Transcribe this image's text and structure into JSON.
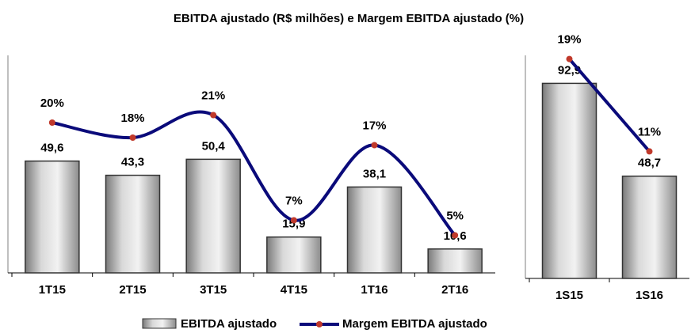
{
  "chart_data": [
    {
      "type": "bar",
      "title": "EBITDA ajustado (R$ milhões) e Margem EBITDA ajustado (%)",
      "categories": [
        "1T15",
        "2T15",
        "3T15",
        "4T15",
        "1T16",
        "2T16"
      ],
      "ylim": [
        0,
        100
      ],
      "y2lim": [
        0,
        30
      ],
      "series": [
        {
          "name": "EBITDA ajustado",
          "type": "bar",
          "color": "#a6a6a6",
          "values": [
            49.6,
            43.3,
            50.4,
            15.9,
            38.1,
            10.6
          ],
          "value_labels": [
            "49,6",
            "43,3",
            "50,4",
            "15,9",
            "38,1",
            "10,6"
          ]
        },
        {
          "name": "Margem EBITDA ajustado",
          "type": "line",
          "axis": "y2",
          "color": "#0a0a7a",
          "marker_color": "#c0392b",
          "values": [
            20,
            18,
            21,
            7,
            17,
            5
          ],
          "value_labels": [
            "20%",
            "18%",
            "21%",
            "7%",
            "17%",
            "5%"
          ]
        }
      ]
    },
    {
      "type": "bar",
      "categories": [
        "1S15",
        "1S16"
      ],
      "ylim": [
        0,
        110
      ],
      "y2lim": [
        0,
        20
      ],
      "series": [
        {
          "type": "bar",
          "color": "#a6a6a6",
          "values": [
            92.9,
            48.7
          ],
          "value_labels": [
            "92,9",
            "48,7"
          ]
        },
        {
          "type": "line",
          "axis": "y2",
          "color": "#0a0a7a",
          "marker_color": "#c0392b",
          "values": [
            19,
            11
          ],
          "value_labels": [
            "19%",
            "11%"
          ]
        }
      ]
    }
  ]
}
